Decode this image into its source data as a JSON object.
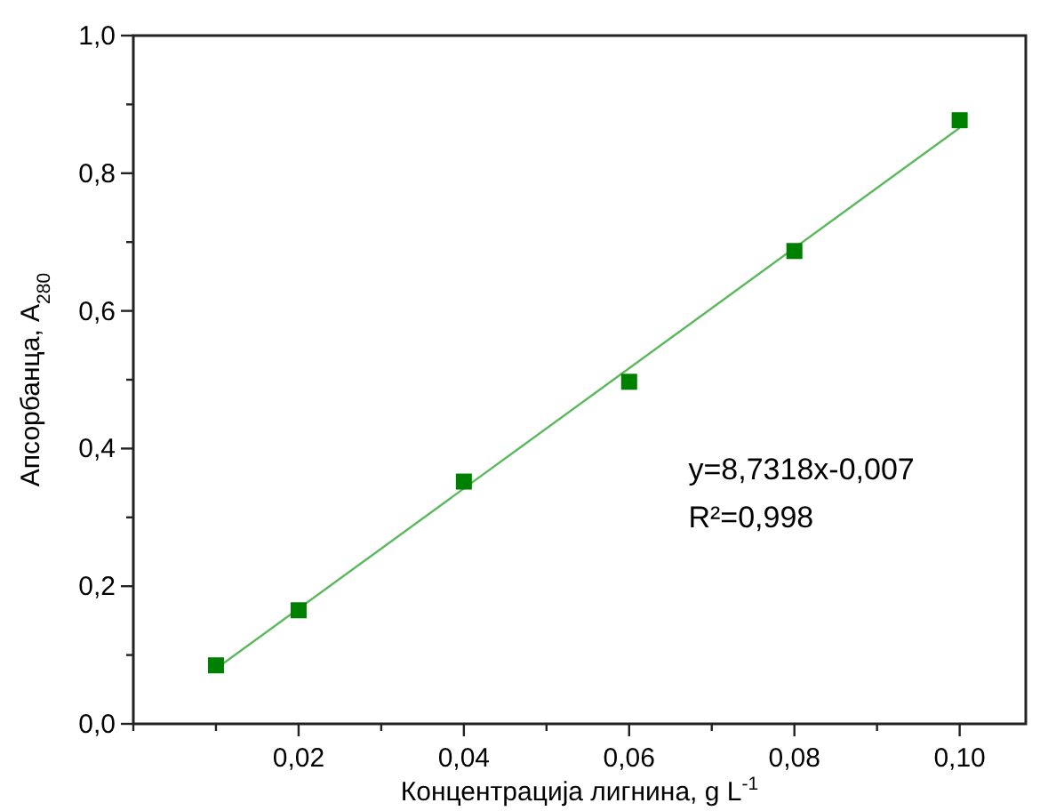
{
  "chart_data": {
    "type": "scatter",
    "xlabel": "Концентрација лигнина, g L$^{-1}$",
    "ylabel": "Апсорбанца, A$_{280}$",
    "xlim": [
      0,
      0.108
    ],
    "ylim": [
      0,
      1
    ],
    "xticks": [
      {
        "value": 0,
        "label": null
      },
      {
        "value": 0.01,
        "label": null
      },
      {
        "value": 0.02,
        "label": "0,02"
      },
      {
        "value": 0.03,
        "label": null
      },
      {
        "value": 0.04,
        "label": "0,04"
      },
      {
        "value": 0.05,
        "label": null
      },
      {
        "value": 0.06,
        "label": "0,06"
      },
      {
        "value": 0.07,
        "label": null
      },
      {
        "value": 0.08,
        "label": "0,08"
      },
      {
        "value": 0.09,
        "label": null
      },
      {
        "value": 0.1,
        "label": "0,10"
      }
    ],
    "yticks": [
      {
        "value": 0,
        "label": "0,0"
      },
      {
        "value": 0.1,
        "label": null
      },
      {
        "value": 0.2,
        "label": "0,2"
      },
      {
        "value": 0.3,
        "label": null
      },
      {
        "value": 0.4,
        "label": "0,4"
      },
      {
        "value": 0.5,
        "label": null
      },
      {
        "value": 0.6,
        "label": "0,6"
      },
      {
        "value": 0.7,
        "label": null
      },
      {
        "value": 0.8,
        "label": "0,8"
      },
      {
        "value": 0.9,
        "label": null
      },
      {
        "value": 1,
        "label": "1,0"
      }
    ],
    "series": [
      {
        "color": "#008000",
        "marker": "square",
        "x": [
          0.01,
          0.02,
          0.04,
          0.06,
          0.08,
          0.1
        ],
        "values": [
          0.085,
          0.165,
          0.352,
          0.497,
          0.687,
          0.877
        ]
      },
      {
        "type": "line",
        "color": "#5cb85c",
        "marker": "none",
        "x": [
          0.01,
          0.1
        ],
        "values": [
          0.08,
          0.866
        ]
      }
    ],
    "annotations": [
      "y=8,7318x-0,007",
      "R²=0,998"
    ],
    "grid": false
  }
}
